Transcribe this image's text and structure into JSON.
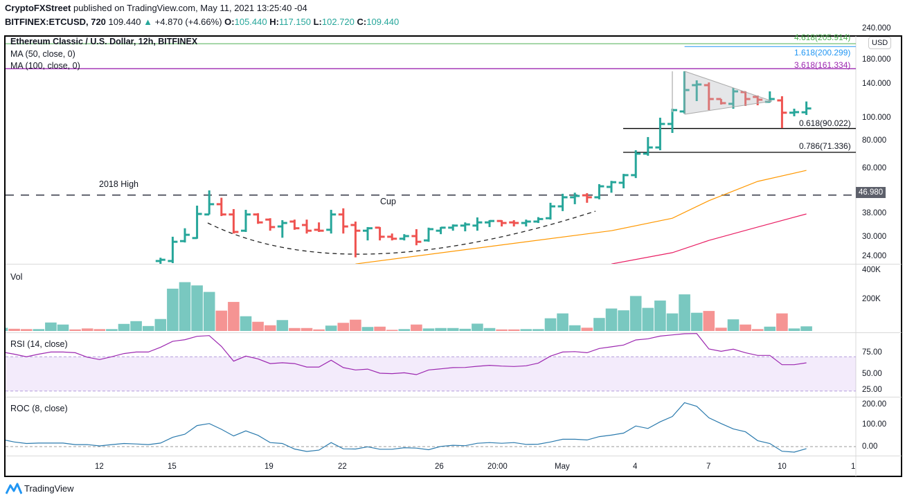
{
  "header": {
    "publisher": "CryptoFXStreet",
    "published_text": "published on TradingView.com, May 11, 2021 13:25:40 -04",
    "symbol": "BITFINEX:ETCUSD, 720",
    "last": "109.440",
    "change": "+4.870 (+4.66%)",
    "o_label": "O:",
    "o": "105.440",
    "h_label": "H:",
    "h": "117.150",
    "l_label": "L:",
    "l": "102.720",
    "c_label": "C:",
    "c": "109.440",
    "up_arrow_icon": "triangle-up-icon"
  },
  "legend": {
    "title": "Ethereum Classic / U.S. Dollar, 12h, BITFINEX",
    "ma50": "MA (50, close, 0)",
    "ma100": "MA (100, close, 0)",
    "vol": "Vol",
    "rsi": "RSI (14, close)",
    "roc": "ROC (8, close)"
  },
  "annotations": {
    "high_2018": "2018 High",
    "cup": "Cup",
    "fib_4618": "4.618(205.914)",
    "fib_1618": "1.618(200.299)",
    "fib_3618": "3.618(161.334)",
    "fib_0618": "0.618(90.022)",
    "fib_0786": "0.786(71.336)"
  },
  "price_axis": {
    "currency": "USD",
    "ticks": [
      "240.000",
      "180.000",
      "140.000",
      "100.000",
      "80.000",
      "60.000",
      "38.000",
      "30.000",
      "24.000"
    ],
    "badge": "46.980"
  },
  "volume_axis": {
    "ticks": [
      "400K",
      "200K"
    ]
  },
  "rsi_axis": {
    "ticks": [
      "75.00",
      "50.00",
      "25.00"
    ]
  },
  "roc_axis": {
    "ticks": [
      "200.00",
      "100.00",
      "0.00"
    ]
  },
  "time_axis": {
    "ticks": [
      "12",
      "15",
      "19",
      "22",
      "26",
      "20:00",
      "May",
      "4",
      "7",
      "10",
      "1"
    ]
  },
  "footer": {
    "brand": "TradingView"
  },
  "colors": {
    "up": "#26a69a",
    "down": "#ef5350",
    "ma50": "#ff9800",
    "ma100": "#e91e63",
    "rsi": "#9c27b0",
    "roc": "#2962ff",
    "fib_3618": "#9c27b0",
    "fib_1618": "#2196f3",
    "fib_4618": "#4caf50"
  },
  "chart_data": {
    "type": "ohlc",
    "price_scale": "log",
    "ylim": [
      23.5,
      245
    ],
    "horizontal_levels": [
      {
        "label": "2018 High",
        "value": 46.98,
        "style": "dashed"
      },
      {
        "label": "4.618",
        "value": 205.914
      },
      {
        "label": "1.618",
        "value": 200.299
      },
      {
        "label": "3.618",
        "value": 161.334
      },
      {
        "label": "0.618",
        "value": 90.022
      },
      {
        "label": "0.786",
        "value": 71.336
      }
    ],
    "candles": [
      null,
      null,
      null,
      null,
      null,
      null,
      null,
      null,
      null,
      null,
      null,
      null,
      null,
      [
        24.7,
        25.5,
        23.9,
        25.0
      ],
      [
        24.7,
        31.3,
        24.2,
        29.8
      ],
      [
        30.0,
        34.0,
        29.6,
        31.9
      ],
      [
        30.9,
        42.4,
        30.7,
        39.1
      ],
      [
        38.9,
        49.2,
        38.9,
        43.0
      ],
      [
        43.0,
        45.8,
        38.3,
        38.9
      ],
      [
        38.9,
        41.0,
        32.3,
        32.8
      ],
      [
        33.2,
        40.7,
        32.8,
        38.9
      ],
      [
        38.9,
        39.4,
        35.5,
        36.0
      ],
      [
        37.0,
        37.5,
        33.2,
        34.4
      ],
      [
        34.6,
        36.8,
        31.0,
        35.8
      ],
      [
        36.3,
        37.0,
        33.5,
        34.0
      ],
      [
        35.1,
        37.0,
        32.3,
        33.2
      ],
      [
        33.5,
        36.0,
        32.8,
        33.2
      ],
      [
        33.5,
        40.7,
        32.3,
        38.9
      ],
      [
        38.9,
        41.3,
        32.3,
        34.6
      ],
      [
        35.1,
        36.3,
        25.6,
        33.2
      ],
      [
        33.2,
        34.4,
        30.2,
        34.0
      ],
      [
        34.2,
        34.4,
        30.2,
        31.3
      ],
      [
        31.3,
        32.3,
        30.2,
        30.7
      ],
      [
        30.7,
        32.1,
        30.2,
        31.5
      ],
      [
        31.5,
        33.7,
        28.8,
        29.8
      ],
      [
        30.2,
        34.2,
        29.8,
        33.7
      ],
      [
        33.2,
        34.4,
        32.1,
        34.2
      ],
      [
        34.2,
        35.3,
        33.2,
        34.9
      ],
      [
        34.9,
        36.0,
        33.0,
        35.3
      ],
      [
        34.9,
        37.8,
        33.2,
        36.0
      ],
      [
        36.0,
        36.8,
        34.4,
        36.5
      ],
      [
        36.5,
        36.8,
        34.6,
        35.8
      ],
      [
        36.0,
        36.8,
        34.6,
        35.8
      ],
      [
        35.8,
        37.0,
        34.6,
        36.3
      ],
      [
        36.3,
        37.9,
        35.8,
        37.2
      ],
      [
        37.5,
        43.6,
        37.0,
        42.1
      ],
      [
        42.1,
        47.6,
        40.2,
        46.0
      ],
      [
        46.0,
        48.1,
        43.0,
        46.6
      ],
      [
        46.9,
        47.9,
        43.6,
        46.0
      ],
      [
        46.0,
        52.3,
        45.1,
        51.2
      ],
      [
        50.9,
        54.0,
        48.1,
        53.3
      ],
      [
        53.0,
        57.8,
        50.2,
        57.1
      ],
      [
        57.1,
        72.8,
        55.5,
        70.4
      ],
      [
        70.4,
        82.8,
        69.0,
        74.8
      ],
      [
        74.8,
        100.0,
        72.8,
        94.1
      ],
      [
        94.1,
        109.2,
        86.2,
        107.7
      ],
      [
        106.3,
        157.3,
        104.1,
        131.0
      ],
      [
        137.4,
        144.0,
        117.6,
        138.3
      ],
      [
        137.4,
        141.1,
        107.7,
        120.0
      ],
      [
        120.0,
        120.0,
        113.7,
        115.3
      ],
      [
        114.5,
        133.7,
        109.2,
        129.3
      ],
      [
        128.4,
        129.3,
        112.2,
        120.0
      ],
      [
        122.5,
        124.2,
        112.9,
        119.2
      ],
      [
        116.8,
        129.3,
        116.0,
        120.0
      ],
      [
        118.4,
        123.3,
        90.3,
        105.0
      ],
      [
        105.0,
        109.2,
        101.4,
        105.6
      ],
      [
        105.44,
        117.15,
        102.72,
        109.44
      ]
    ],
    "ma50": [
      [
        29,
        24.0
      ],
      [
        50,
        33.2
      ],
      [
        55,
        37.5
      ],
      [
        58,
        44.5
      ],
      [
        62,
        53.7
      ],
      [
        66,
        59.8
      ]
    ],
    "ma100": [
      [
        50,
        24.0
      ],
      [
        55,
        26.8
      ],
      [
        58,
        30.2
      ],
      [
        62,
        34.4
      ],
      [
        66,
        39.1
      ]
    ],
    "volume_k": [
      39,
      27,
      23,
      23,
      104,
      79,
      19,
      31,
      23,
      23,
      87,
      121,
      61,
      147,
      520,
      600,
      560,
      480,
      250,
      357,
      181,
      113,
      70,
      134,
      36,
      36,
      19,
      66,
      100,
      139,
      49,
      53,
      14,
      23,
      79,
      31,
      36,
      36,
      27,
      90,
      36,
      19,
      19,
      23,
      23,
      156,
      216,
      70,
      40,
      160,
      276,
      254,
      430,
      284,
      374,
      216,
      450,
      224,
      246,
      40,
      143,
      79,
      23,
      53,
      216,
      31,
      57
    ],
    "volume_dir": [
      "up",
      "down",
      "down",
      "up",
      "up",
      "up",
      "down",
      "down",
      "down",
      "up",
      "up",
      "up",
      "up",
      "up",
      "up",
      "up",
      "up",
      "up",
      "down",
      "down",
      "up",
      "down",
      "down",
      "up",
      "down",
      "down",
      "down",
      "up",
      "down",
      "down",
      "up",
      "down",
      "down",
      "up",
      "down",
      "up",
      "up",
      "up",
      "up",
      "up",
      "up",
      "down",
      "down",
      "up",
      "up",
      "up",
      "up",
      "up",
      "down",
      "up",
      "up",
      "up",
      "up",
      "up",
      "up",
      "up",
      "up",
      "up",
      "down",
      "down",
      "up",
      "down",
      "down",
      "up",
      "down",
      "up",
      "up"
    ],
    "volume_ylim": [
      0,
      400
    ],
    "rsi": [
      75.5,
      73,
      70,
      73,
      75.5,
      75.5,
      74.7,
      69.4,
      66.7,
      70,
      73.7,
      75.5,
      75.5,
      81,
      88,
      89.8,
      93.8,
      94.6,
      82,
      64.8,
      70.7,
      67.5,
      62,
      63,
      62,
      58,
      58,
      66,
      57.3,
      54.6,
      55.6,
      50.8,
      50.3,
      51.3,
      49.2,
      54.6,
      55.9,
      57.3,
      57.5,
      58.9,
      60,
      59.1,
      58.6,
      59.4,
      62.6,
      70.7,
      75.5,
      76,
      74.7,
      79.6,
      81.5,
      83.6,
      89.5,
      90.9,
      94,
      95.4,
      96.8,
      97,
      79,
      76.3,
      78.8,
      74.7,
      71.5,
      71.5,
      60.7,
      60.7,
      62.9
    ],
    "rsi_band": [
      30,
      70
    ],
    "roc": [
      32,
      21,
      14,
      16,
      16,
      16,
      9,
      9,
      3,
      9,
      14,
      12,
      9,
      16,
      42,
      56,
      95,
      104,
      78,
      48,
      71,
      51,
      18,
      14,
      -11,
      -22,
      -16,
      18,
      -10,
      -11,
      -1,
      -12,
      -12,
      -5,
      -7,
      -14,
      1,
      6,
      4,
      15,
      18,
      15,
      18,
      10,
      11,
      21,
      33,
      33,
      30,
      45,
      52,
      61,
      93,
      82,
      112,
      136,
      198,
      182,
      130,
      104,
      80,
      67,
      27,
      14,
      -21,
      -25,
      -9
    ]
  }
}
